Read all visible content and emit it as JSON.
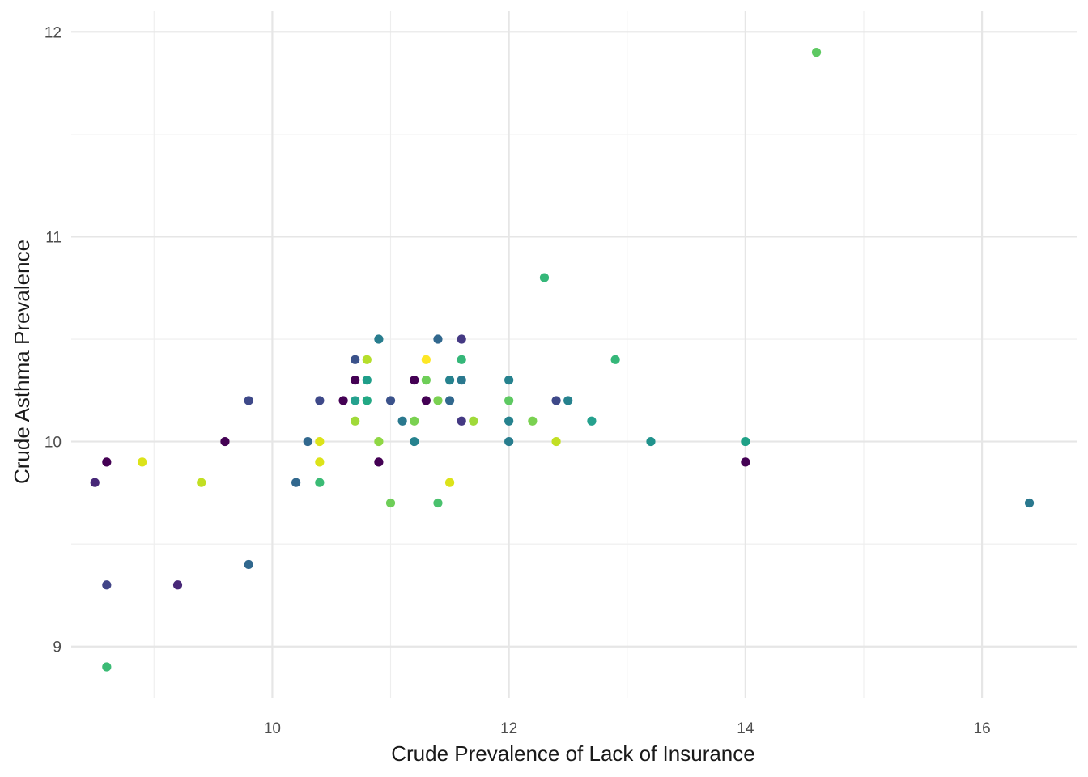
{
  "chart_data": {
    "type": "scatter",
    "title": "",
    "xlabel": "Crude Prevalence of Lack of Insurance",
    "ylabel": "Crude Asthma Prevalence",
    "xlim": [
      8.3,
      16.8
    ],
    "ylim": [
      8.75,
      12.1
    ],
    "x_ticks": [
      10,
      12,
      14,
      16
    ],
    "y_ticks": [
      9,
      10,
      11,
      12
    ],
    "grid": true,
    "legend": "none",
    "points": [
      {
        "x": 14.6,
        "y": 11.9,
        "color": "#5ec962"
      },
      {
        "x": 12.3,
        "y": 10.8,
        "color": "#35b779"
      },
      {
        "x": 10.9,
        "y": 10.5,
        "color": "#287d8e"
      },
      {
        "x": 11.4,
        "y": 10.5,
        "color": "#31688e"
      },
      {
        "x": 11.6,
        "y": 10.5,
        "color": "#443983"
      },
      {
        "x": 10.7,
        "y": 10.4,
        "color": "#3b528b"
      },
      {
        "x": 10.8,
        "y": 10.4,
        "color": "#b5de2b"
      },
      {
        "x": 11.3,
        "y": 10.4,
        "color": "#fde725"
      },
      {
        "x": 11.6,
        "y": 10.4,
        "color": "#35b779"
      },
      {
        "x": 12.9,
        "y": 10.4,
        "color": "#35b779"
      },
      {
        "x": 10.7,
        "y": 10.3,
        "color": "#440154"
      },
      {
        "x": 10.8,
        "y": 10.3,
        "color": "#1f9e89"
      },
      {
        "x": 11.2,
        "y": 10.3,
        "color": "#440154"
      },
      {
        "x": 11.3,
        "y": 10.3,
        "color": "#6ece58"
      },
      {
        "x": 11.5,
        "y": 10.3,
        "color": "#26828e"
      },
      {
        "x": 11.6,
        "y": 10.3,
        "color": "#2a788e"
      },
      {
        "x": 12.0,
        "y": 10.3,
        "color": "#26828e"
      },
      {
        "x": 9.8,
        "y": 10.2,
        "color": "#3e4989"
      },
      {
        "x": 10.4,
        "y": 10.2,
        "color": "#3e4989"
      },
      {
        "x": 10.6,
        "y": 10.2,
        "color": "#440154"
      },
      {
        "x": 10.7,
        "y": 10.2,
        "color": "#25a18e"
      },
      {
        "x": 10.8,
        "y": 10.2,
        "color": "#22a884"
      },
      {
        "x": 11.0,
        "y": 10.2,
        "color": "#3b528b"
      },
      {
        "x": 11.3,
        "y": 10.2,
        "color": "#440154"
      },
      {
        "x": 11.4,
        "y": 10.2,
        "color": "#7ad151"
      },
      {
        "x": 11.5,
        "y": 10.2,
        "color": "#31688e"
      },
      {
        "x": 12.0,
        "y": 10.2,
        "color": "#5ec962"
      },
      {
        "x": 12.4,
        "y": 10.2,
        "color": "#3e4989"
      },
      {
        "x": 12.5,
        "y": 10.2,
        "color": "#26828e"
      },
      {
        "x": 10.7,
        "y": 10.1,
        "color": "#a0da39"
      },
      {
        "x": 11.1,
        "y": 10.1,
        "color": "#2a788e"
      },
      {
        "x": 11.2,
        "y": 10.1,
        "color": "#7ad151"
      },
      {
        "x": 11.6,
        "y": 10.1,
        "color": "#443983"
      },
      {
        "x": 11.7,
        "y": 10.1,
        "color": "#a0da39"
      },
      {
        "x": 12.0,
        "y": 10.1,
        "color": "#26828e"
      },
      {
        "x": 12.2,
        "y": 10.1,
        "color": "#7ad151"
      },
      {
        "x": 12.7,
        "y": 10.1,
        "color": "#25a18e"
      },
      {
        "x": 9.6,
        "y": 10.0,
        "color": "#440154"
      },
      {
        "x": 10.3,
        "y": 10.0,
        "color": "#31688e"
      },
      {
        "x": 10.4,
        "y": 10.0,
        "color": "#dce319"
      },
      {
        "x": 10.9,
        "y": 10.0,
        "color": "#8fd744"
      },
      {
        "x": 11.2,
        "y": 10.0,
        "color": "#26828e"
      },
      {
        "x": 12.0,
        "y": 10.0,
        "color": "#287d8e"
      },
      {
        "x": 12.4,
        "y": 10.0,
        "color": "#c2df23"
      },
      {
        "x": 13.2,
        "y": 10.0,
        "color": "#20928c"
      },
      {
        "x": 14.0,
        "y": 10.0,
        "color": "#1fa187"
      },
      {
        "x": 8.6,
        "y": 9.9,
        "color": "#440154"
      },
      {
        "x": 8.9,
        "y": 9.9,
        "color": "#dce319"
      },
      {
        "x": 10.4,
        "y": 9.9,
        "color": "#dce319"
      },
      {
        "x": 10.9,
        "y": 9.9,
        "color": "#440154"
      },
      {
        "x": 14.0,
        "y": 9.9,
        "color": "#440154"
      },
      {
        "x": 8.5,
        "y": 9.8,
        "color": "#482878"
      },
      {
        "x": 9.4,
        "y": 9.8,
        "color": "#c2df23"
      },
      {
        "x": 10.2,
        "y": 9.8,
        "color": "#31688e"
      },
      {
        "x": 10.4,
        "y": 9.8,
        "color": "#3bbb75"
      },
      {
        "x": 11.5,
        "y": 9.8,
        "color": "#dce319"
      },
      {
        "x": 11.0,
        "y": 9.7,
        "color": "#6ece58"
      },
      {
        "x": 11.4,
        "y": 9.7,
        "color": "#4ac16d"
      },
      {
        "x": 16.4,
        "y": 9.7,
        "color": "#2a788e"
      },
      {
        "x": 9.8,
        "y": 9.4,
        "color": "#31688e"
      },
      {
        "x": 8.6,
        "y": 9.3,
        "color": "#414487"
      },
      {
        "x": 9.2,
        "y": 9.3,
        "color": "#482878"
      },
      {
        "x": 8.6,
        "y": 8.9,
        "color": "#3bbb75"
      }
    ]
  }
}
